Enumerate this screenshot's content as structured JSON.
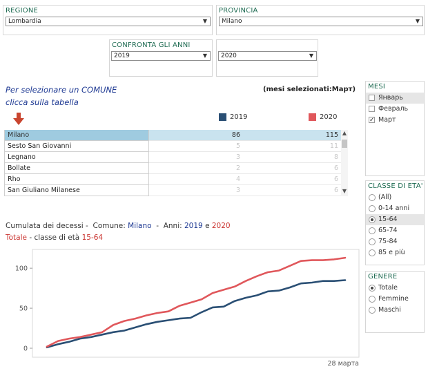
{
  "filters": {
    "regione": {
      "title": "REGIONE",
      "value": "Lombardia"
    },
    "provincia": {
      "title": "PROVINCIA",
      "value": "Milano"
    },
    "confronta": {
      "title": "CONFRONTA GLI ANNI",
      "year_a": "2019",
      "year_b": "2020"
    }
  },
  "hint": {
    "line1": "Per selezionare un COMUNE",
    "line2": "clicca sulla tabella"
  },
  "months_selected": {
    "label": "(mesi selezionati:",
    "value": "Март",
    "close": ")"
  },
  "legend": {
    "y2019": "2019",
    "y2020": "2020"
  },
  "colors": {
    "y2019": "#2a4f74",
    "y2020": "#e0575b",
    "selected_row": "#9fcbe0",
    "arrow": "#c9452f"
  },
  "table": {
    "rows": [
      {
        "name": "Milano",
        "v2019": "86",
        "v2020": "115",
        "selected": true
      },
      {
        "name": "Sesto San Giovanni",
        "v2019": "5",
        "v2020": "11"
      },
      {
        "name": "Legnano",
        "v2019": "3",
        "v2020": "8"
      },
      {
        "name": "Bollate",
        "v2019": "2",
        "v2020": "6"
      },
      {
        "name": "Rho",
        "v2019": "4",
        "v2020": "6"
      },
      {
        "name": "San Giuliano Milanese",
        "v2019": "3",
        "v2020": "6"
      }
    ]
  },
  "chart_title": {
    "prefix": "Cumulata dei decessi -  Comune: ",
    "comune": "Milano",
    "mid": "  -  Anni: ",
    "year_a": "2019",
    "and": " e ",
    "year_b": "2020",
    "line2_a": "Totale",
    "line2_b": " - classe di età ",
    "line2_c": "15-64"
  },
  "chart_data": {
    "type": "line",
    "ylim": [
      0,
      120
    ],
    "yticks": [
      "0",
      "50",
      "100"
    ],
    "xlabel_end": "28 марта",
    "x": [
      1,
      2,
      3,
      4,
      5,
      6,
      7,
      8,
      9,
      10,
      11,
      12,
      13,
      14,
      15,
      16,
      17,
      18,
      19,
      20,
      21,
      22,
      23,
      24,
      25,
      26,
      27,
      28
    ],
    "series": [
      {
        "name": "2019",
        "values": [
          1,
          5,
          8,
          12,
          14,
          17,
          20,
          22,
          26,
          30,
          33,
          35,
          37,
          38,
          45,
          51,
          52,
          59,
          63,
          66,
          71,
          72,
          76,
          81,
          82,
          84,
          84,
          85
        ]
      },
      {
        "name": "2020",
        "values": [
          2,
          9,
          12,
          14,
          17,
          20,
          29,
          34,
          37,
          41,
          44,
          46,
          53,
          57,
          61,
          69,
          73,
          77,
          84,
          90,
          95,
          97,
          103,
          109,
          110,
          110,
          111,
          113
        ]
      }
    ]
  },
  "mesi": {
    "title": "MESI",
    "items": [
      {
        "label": "Январь",
        "checked": false,
        "highlight": true
      },
      {
        "label": "Февраль",
        "checked": false
      },
      {
        "label": "Март",
        "checked": true
      }
    ]
  },
  "classe": {
    "title": "CLASSE DI ETA'",
    "items": [
      {
        "label": "(All)",
        "selected": false
      },
      {
        "label": "0-14 anni",
        "selected": false
      },
      {
        "label": "15-64",
        "selected": true
      },
      {
        "label": "65-74",
        "selected": false
      },
      {
        "label": "75-84",
        "selected": false
      },
      {
        "label": "85 e più",
        "selected": false
      }
    ]
  },
  "genere": {
    "title": "GENERE",
    "items": [
      {
        "label": "Totale",
        "selected": true
      },
      {
        "label": "Femmine",
        "selected": false
      },
      {
        "label": "Maschi",
        "selected": false
      }
    ]
  }
}
